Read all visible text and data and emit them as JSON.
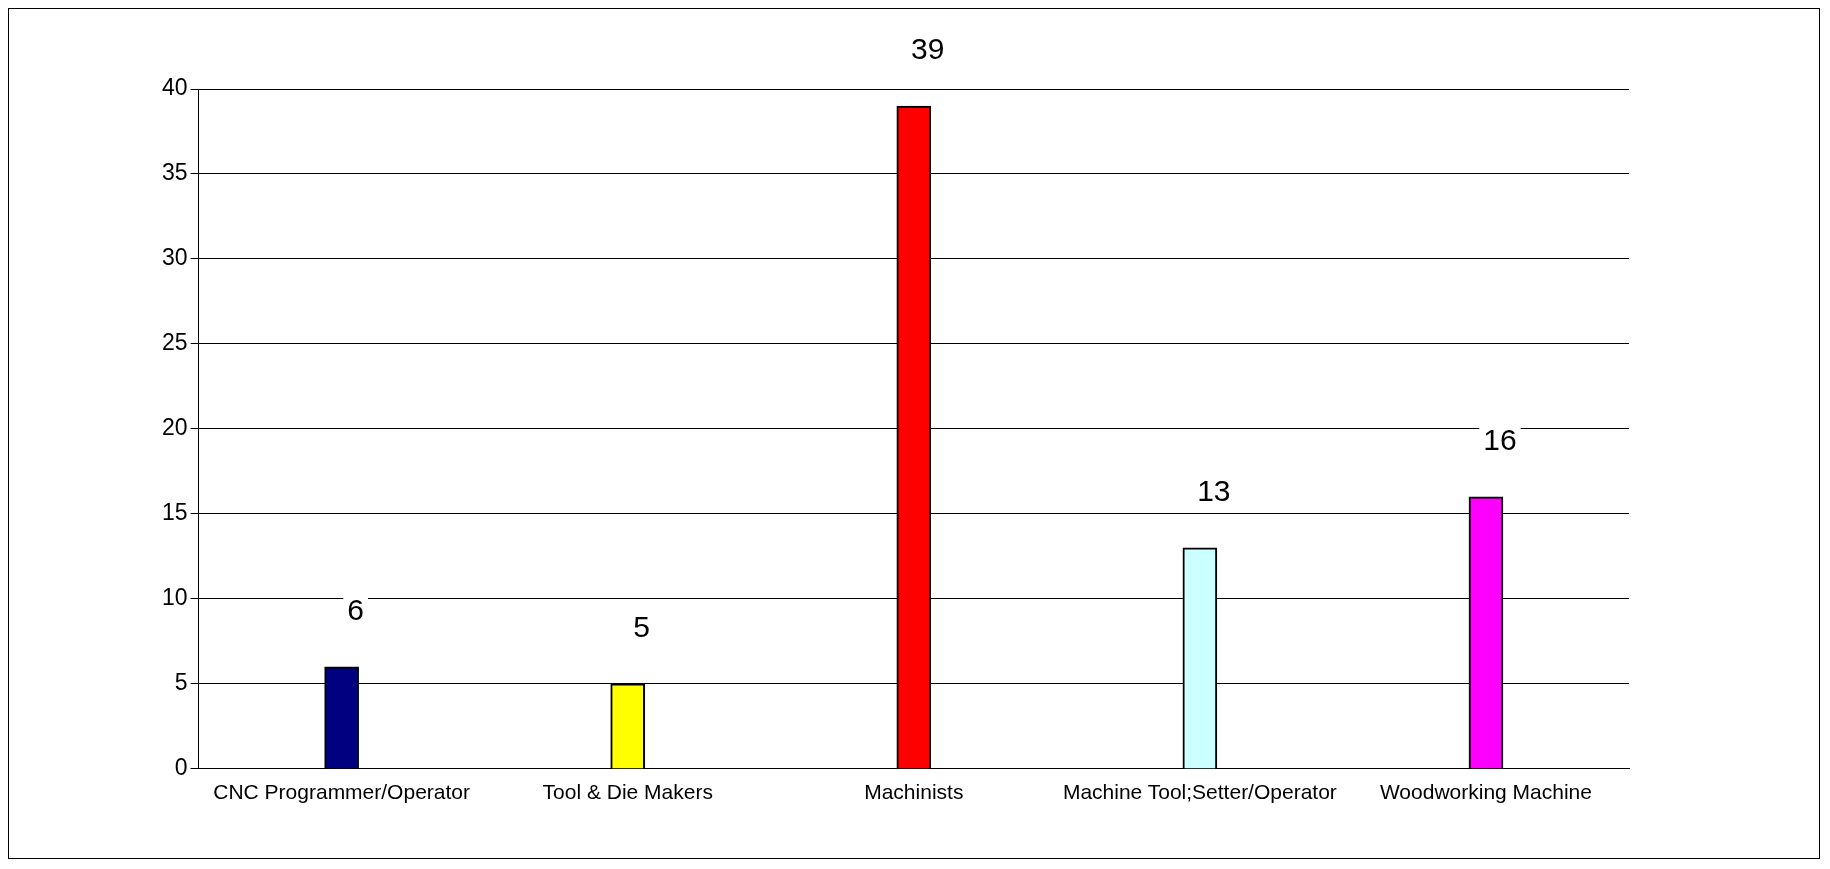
{
  "chart_data": {
    "type": "bar",
    "categories": [
      "CNC Programmer/Operator",
      "Tool & Die Makers",
      "Machinists",
      "Machine Tool;Setter/Operator",
      "Woodworking Machine"
    ],
    "values": [
      6,
      5,
      39,
      13,
      16
    ],
    "colors": [
      "#000080",
      "#ffff00",
      "#ff0000",
      "#ccffff",
      "#ff00ff"
    ],
    "ylim": [
      0,
      40
    ],
    "yticks": [
      0,
      5,
      10,
      15,
      20,
      25,
      30,
      35,
      40
    ],
    "grid": "y",
    "data_labels": true
  }
}
